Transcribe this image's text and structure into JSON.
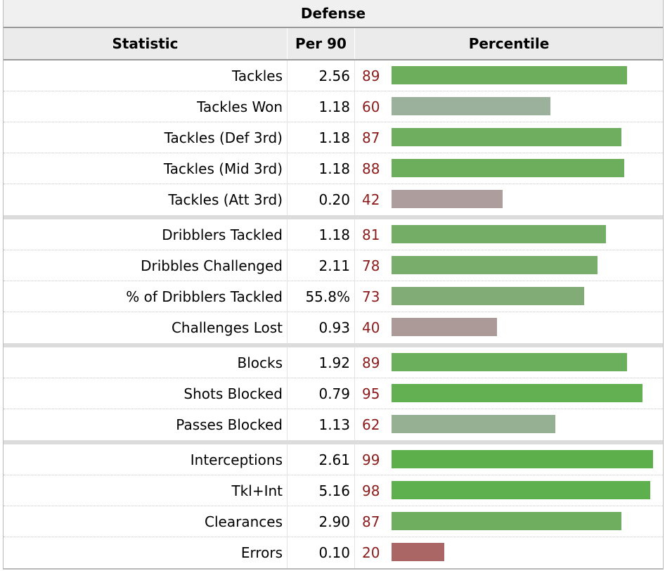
{
  "table": {
    "title": "Defense",
    "headers": {
      "statistic": "Statistic",
      "per90": "Per 90",
      "percentile": "Percentile"
    },
    "groups": [
      [
        {
          "stat": "Tackles",
          "per90": "2.56",
          "percentile": 89,
          "color": "#6cae5c"
        },
        {
          "stat": "Tackles Won",
          "per90": "1.18",
          "percentile": 60,
          "color": "#9bb19b"
        },
        {
          "stat": "Tackles (Def 3rd)",
          "per90": "1.18",
          "percentile": 87,
          "color": "#6fae5f"
        },
        {
          "stat": "Tackles (Mid 3rd)",
          "per90": "1.18",
          "percentile": 88,
          "color": "#6dae5d"
        },
        {
          "stat": "Tackles (Att 3rd)",
          "per90": "0.20",
          "percentile": 42,
          "color": "#ad9d9c"
        }
      ],
      [
        {
          "stat": "Dribblers Tackled",
          "per90": "1.18",
          "percentile": 81,
          "color": "#74ad66"
        },
        {
          "stat": "Dribbles Challenged",
          "per90": "2.11",
          "percentile": 78,
          "color": "#78ad6b"
        },
        {
          "stat": "% of Dribblers Tackled",
          "per90": "55.8%",
          "percentile": 73,
          "color": "#81ac75"
        },
        {
          "stat": "Challenges Lost",
          "per90": "0.93",
          "percentile": 40,
          "color": "#ac9a99"
        }
      ],
      [
        {
          "stat": "Blocks",
          "per90": "1.92",
          "percentile": 89,
          "color": "#6bae5b"
        },
        {
          "stat": "Shots Blocked",
          "per90": "0.79",
          "percentile": 95,
          "color": "#62b052"
        },
        {
          "stat": "Passes Blocked",
          "per90": "1.13",
          "percentile": 62,
          "color": "#96b094"
        }
      ],
      [
        {
          "stat": "Interceptions",
          "per90": "2.61",
          "percentile": 99,
          "color": "#5caf4b"
        },
        {
          "stat": "Tkl+Int",
          "per90": "5.16",
          "percentile": 98,
          "color": "#5eaf4d"
        },
        {
          "stat": "Clearances",
          "per90": "2.90",
          "percentile": 87,
          "color": "#6fae5f"
        },
        {
          "stat": "Errors",
          "per90": "0.10",
          "percentile": 20,
          "color": "#a96664"
        }
      ]
    ]
  }
}
